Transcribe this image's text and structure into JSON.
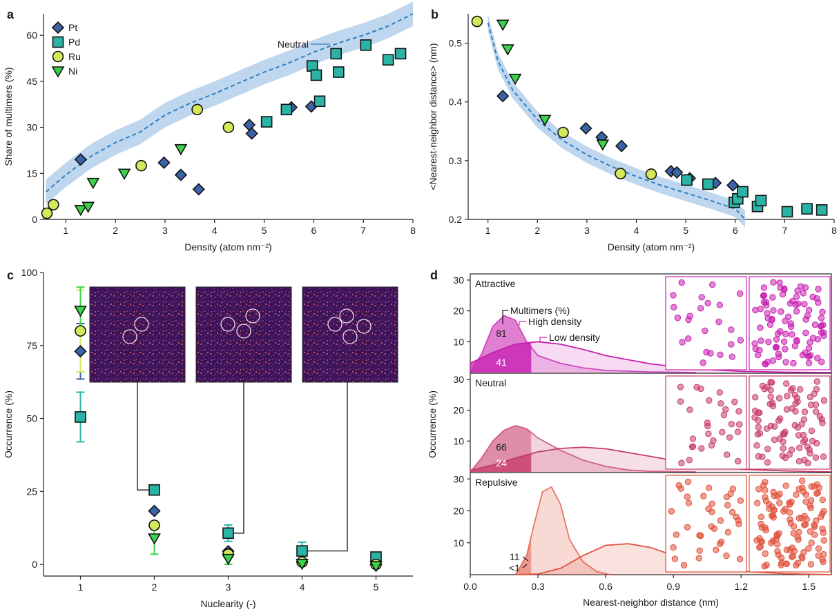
{
  "colors": {
    "Pt": "#3b63a8",
    "Pd": "#2bb3a6",
    "Ru": "#d4e85a",
    "Ni": "#3ad44a",
    "neutral": "#2e7fc0",
    "band": "#a9c9e8",
    "attractive": "#c81fb0",
    "neutralPanel": "#c63a6c",
    "repulsive": "#e0503a"
  },
  "chart_data": [
    {
      "panel": "a",
      "type": "scatter",
      "xlabel": "Density (atom nm⁻²)",
      "ylabel": "Share of multimers (%)",
      "xlim": [
        0.55,
        8
      ],
      "ylim": [
        0,
        67
      ],
      "xticks": [
        1,
        2,
        3,
        4,
        5,
        6,
        7,
        8
      ],
      "yticks": [
        0,
        15,
        30,
        45,
        60
      ],
      "legend_position": "top-left",
      "series": [
        {
          "name": "Pt",
          "marker": "diamond",
          "points": [
            [
              1.3,
              19.5
            ],
            [
              2.98,
              18.5
            ],
            [
              3.32,
              14.5
            ],
            [
              3.68,
              9.8
            ],
            [
              4.7,
              30.8
            ],
            [
              4.75,
              28
            ],
            [
              5.55,
              36.5
            ],
            [
              5.95,
              36.8
            ]
          ]
        },
        {
          "name": "Pd",
          "marker": "square",
          "points": [
            [
              5.05,
              31.8
            ],
            [
              5.45,
              35.8
            ],
            [
              5.97,
              50
            ],
            [
              6.05,
              47
            ],
            [
              6.12,
              38.5
            ],
            [
              6.45,
              54
            ],
            [
              6.5,
              48
            ],
            [
              7.05,
              56.8
            ],
            [
              7.5,
              52
            ],
            [
              7.75,
              54
            ]
          ]
        },
        {
          "name": "Ru",
          "marker": "circle",
          "points": [
            [
              0.62,
              2
            ],
            [
              0.75,
              4.8
            ],
            [
              2.52,
              17.5
            ],
            [
              3.65,
              35.8
            ],
            [
              4.28,
              30
            ]
          ]
        },
        {
          "name": "Ni",
          "marker": "triangle",
          "points": [
            [
              1.3,
              3.2
            ],
            [
              1.45,
              4.2
            ],
            [
              1.55,
              12
            ],
            [
              2.18,
              15
            ],
            [
              3.32,
              23
            ]
          ]
        }
      ],
      "reference": {
        "name": "Neutral",
        "x": [
          0.6,
          1,
          1.5,
          2,
          2.5,
          3,
          3.5,
          4,
          4.5,
          5,
          5.5,
          6,
          6.5,
          7,
          7.5,
          8
        ],
        "mean": [
          9,
          14.5,
          20.5,
          25,
          28.5,
          34,
          37.8,
          41,
          44.5,
          48,
          51,
          54.5,
          57.5,
          60,
          63,
          67
        ],
        "band": 4
      }
    },
    {
      "panel": "b",
      "type": "scatter",
      "xlabel": "Density (atom nm⁻²)",
      "ylabel": "<Nearest-neighbor distance> (nm)",
      "xlim": [
        0.6,
        8
      ],
      "ylim": [
        0.2,
        0.55
      ],
      "xticks": [
        1,
        2,
        3,
        4,
        5,
        6,
        7,
        8
      ],
      "yticks": [
        0.2,
        0.3,
        0.4,
        0.5
      ],
      "series": [
        {
          "name": "Pt",
          "marker": "diamond",
          "points": [
            [
              1.3,
              0.41
            ],
            [
              2.98,
              0.355
            ],
            [
              3.3,
              0.34
            ],
            [
              3.7,
              0.325
            ],
            [
              4.7,
              0.282
            ],
            [
              4.82,
              0.28
            ],
            [
              5.08,
              0.27
            ],
            [
              5.6,
              0.262
            ],
            [
              5.95,
              0.258
            ]
          ]
        },
        {
          "name": "Pd",
          "marker": "square",
          "points": [
            [
              5.02,
              0.267
            ],
            [
              5.45,
              0.26
            ],
            [
              5.98,
              0.229
            ],
            [
              6.05,
              0.235
            ],
            [
              6.15,
              0.247
            ],
            [
              6.45,
              0.222
            ],
            [
              6.52,
              0.232
            ],
            [
              7.05,
              0.213
            ],
            [
              7.45,
              0.218
            ],
            [
              7.75,
              0.216
            ]
          ]
        },
        {
          "name": "Ru",
          "marker": "circle",
          "points": [
            [
              0.78,
              0.537
            ],
            [
              2.52,
              0.348
            ],
            [
              3.68,
              0.278
            ],
            [
              4.3,
              0.277
            ]
          ]
        },
        {
          "name": "Ni",
          "marker": "triangle",
          "points": [
            [
              1.3,
              0.532
            ],
            [
              1.4,
              0.49
            ],
            [
              1.55,
              0.44
            ],
            [
              2.15,
              0.37
            ],
            [
              3.32,
              0.328
            ]
          ]
        }
      ],
      "reference": {
        "name": "Neutral",
        "x": [
          1,
          1.2,
          1.5,
          2,
          2.5,
          3,
          3.5,
          4,
          4.5,
          5,
          5.5,
          6,
          6.2
        ],
        "mean": [
          0.535,
          0.47,
          0.42,
          0.37,
          0.335,
          0.31,
          0.29,
          0.273,
          0.258,
          0.245,
          0.232,
          0.218,
          0.2
        ],
        "band": 0.014
      }
    },
    {
      "panel": "c",
      "type": "scatter",
      "xlabel": "Nuclearity (-)",
      "ylabel": "Occurrence (%)",
      "xlim": [
        0.5,
        5.5
      ],
      "ylim": [
        -4,
        100
      ],
      "xticks": [
        1,
        2,
        3,
        4,
        5
      ],
      "yticks": [
        0,
        25,
        50,
        75,
        100
      ],
      "series": [
        {
          "name": "Pt",
          "marker": "diamond",
          "points": [
            [
              1,
              73,
              9.5
            ],
            [
              2,
              18.3,
              0
            ],
            [
              3,
              4.5,
              0
            ],
            [
              4,
              1,
              0
            ],
            [
              5,
              0,
              0
            ]
          ]
        },
        {
          "name": "Pd",
          "marker": "square",
          "points": [
            [
              1,
              50.5,
              8.5
            ],
            [
              2,
              25.5,
              0
            ],
            [
              3,
              10.7,
              2.8
            ],
            [
              4,
              4.6,
              3
            ],
            [
              5,
              2.5,
              0
            ]
          ]
        },
        {
          "name": "Ru",
          "marker": "circle",
          "points": [
            [
              1,
              80,
              14
            ],
            [
              2,
              13.4,
              0
            ],
            [
              3,
              3.5,
              0
            ],
            [
              4,
              0.8,
              0
            ],
            [
              5,
              0,
              0
            ]
          ]
        },
        {
          "name": "Ni",
          "marker": "triangle",
          "points": [
            [
              1,
              87,
              8
            ],
            [
              2,
              9,
              5.5
            ],
            [
              3,
              2,
              2
            ],
            [
              4,
              0.3,
              0
            ],
            [
              5,
              -0.5,
              0
            ]
          ]
        }
      ]
    },
    {
      "panel": "d",
      "type": "area",
      "xlabel": "Nearest-neighbor distance (nm)",
      "ylabel": "Occurrence (%)",
      "xlim": [
        0,
        1.6
      ],
      "ylim": [
        0,
        32
      ],
      "xticks": [
        0.0,
        0.3,
        0.6,
        0.9,
        1.2,
        1.5
      ],
      "yticks": [
        10,
        20,
        30
      ],
      "cutoff": 0.27,
      "subpanels": [
        {
          "name": "Attractive",
          "high": {
            "x": [
              0,
              0.05,
              0.1,
              0.15,
              0.2,
              0.25,
              0.3,
              0.4,
              0.5,
              0.6,
              0.8,
              1.0
            ],
            "y": [
              0,
              6,
              15,
              18.5,
              17,
              10,
              5.5,
              3,
              1.5,
              0.7,
              0.2,
              0
            ]
          },
          "low": {
            "x": [
              0,
              0.1,
              0.2,
              0.3,
              0.4,
              0.5,
              0.6,
              0.8,
              1.0,
              1.2,
              1.4,
              1.6
            ],
            "y": [
              3,
              6.5,
              9.2,
              10,
              9.2,
              7.5,
              5.5,
              2.8,
              1.2,
              0.4,
              0.1,
              0
            ]
          },
          "high_pct": "81",
          "low_pct": "41"
        },
        {
          "name": "Neutral",
          "high": {
            "x": [
              0,
              0.05,
              0.1,
              0.15,
              0.2,
              0.25,
              0.3,
              0.4,
              0.5,
              0.6,
              0.7,
              0.8,
              1.0
            ],
            "y": [
              0,
              4.5,
              10,
              13.5,
              15,
              14,
              11,
              7,
              3.8,
              1.8,
              0.6,
              0.2,
              0
            ]
          },
          "low": {
            "x": [
              0,
              0.1,
              0.2,
              0.3,
              0.4,
              0.5,
              0.6,
              0.8,
              1.0,
              1.2,
              1.4,
              1.6
            ],
            "y": [
              0.5,
              2.2,
              4.5,
              6.5,
              7.6,
              8,
              7.5,
              5,
              2.4,
              0.9,
              0.3,
              0
            ]
          },
          "high_pct": "66",
          "low_pct": "24"
        },
        {
          "name": "Repulsive",
          "high": {
            "x": [
              0.2,
              0.25,
              0.28,
              0.32,
              0.36,
              0.4,
              0.44,
              0.5,
              0.56,
              0.62
            ],
            "y": [
              0,
              6,
              15,
              26,
              27.5,
              22,
              11,
              4,
              1,
              0
            ]
          },
          "low": {
            "x": [
              0.2,
              0.3,
              0.4,
              0.5,
              0.6,
              0.7,
              0.8,
              0.9,
              1.0,
              1.2,
              1.4,
              1.6
            ],
            "y": [
              0,
              0.2,
              2,
              6,
              9.2,
              9.7,
              8.5,
              6,
              3.6,
              1.1,
              0.3,
              0
            ]
          },
          "high_pct": "11",
          "low_pct": "<1"
        }
      ]
    }
  ],
  "labels": {
    "panel_a": "a",
    "panel_b": "b",
    "panel_c": "c",
    "panel_d": "d",
    "neutral_label": "Neutral",
    "legend": [
      "Pt",
      "Pd",
      "Ru",
      "Ni"
    ],
    "annot_multimers": "Multimers (%)",
    "annot_high": "High density",
    "annot_low": "Low density"
  }
}
